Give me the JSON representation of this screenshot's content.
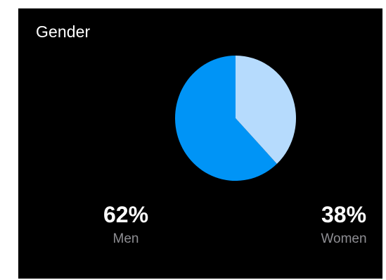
{
  "card": {
    "title": "Gender"
  },
  "colors": {
    "background": "#000000",
    "men": "#0094f6",
    "women": "#b6dbfd",
    "title_text": "#ffffff",
    "label_text": "#8e8e93"
  },
  "stats": {
    "men": {
      "value": "62%",
      "label": "Men"
    },
    "women": {
      "value": "38%",
      "label": "Women"
    }
  },
  "chart_data": {
    "type": "pie",
    "title": "Gender",
    "categories": [
      "Men",
      "Women"
    ],
    "values": [
      62,
      38
    ],
    "colors": [
      "#0094f6",
      "#b6dbfd"
    ],
    "legend": "none"
  }
}
